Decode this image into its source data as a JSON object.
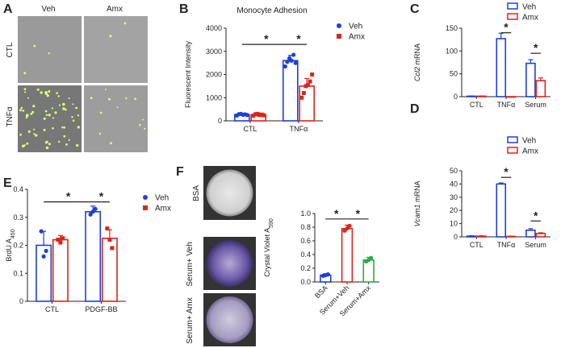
{
  "panels": {
    "A": {
      "label": "A",
      "col_labels": [
        "Veh",
        "Amx"
      ],
      "row_labels": [
        "CTL",
        "TNFα"
      ]
    },
    "F_images": {
      "label": "F",
      "row_labels": [
        "BSA",
        "Serum+ Veh",
        "Serum+ Amx"
      ]
    }
  },
  "colors": {
    "veh": "#1f3fd6",
    "amx": "#d9261c",
    "amx3": "#2fa84a"
  },
  "chart_data": [
    {
      "id": "B",
      "label": "B",
      "type": "bar",
      "title": "Monocyte Adhesion",
      "ylabel": "Fluorescent Intensity",
      "xlabel": "",
      "categories": [
        "CTL",
        "TNFα"
      ],
      "ylim": [
        0,
        4000
      ],
      "yticks": [
        0,
        1000,
        2000,
        3000,
        4000
      ],
      "legend": "top-right",
      "bar_style": "filled",
      "series": [
        {
          "name": "Veh",
          "values": [
            270,
            2600
          ],
          "err": [
            60,
            230
          ],
          "points": [
            [
              230,
              290,
              300,
              260,
              280,
              250
            ],
            [
              2350,
              2550,
              2700,
              2600,
              2850,
              2500
            ]
          ]
        },
        {
          "name": "Amx",
          "values": [
            260,
            1500
          ],
          "err": [
            60,
            330
          ],
          "points": [
            [
              220,
              280,
              300,
              250,
              270,
              240
            ],
            [
              1000,
              1200,
              1500,
              1550,
              1700,
              2000
            ]
          ]
        }
      ],
      "annotations": [
        {
          "text": "*",
          "from": [
            0,
            0
          ],
          "to": [
            1,
            0
          ],
          "y": 3300
        },
        {
          "text": "*",
          "from": [
            1,
            0
          ],
          "to": [
            1,
            1
          ],
          "y": 3300
        }
      ]
    },
    {
      "id": "C",
      "label": "C",
      "type": "bar",
      "ylabel_italic": "Ccl2",
      "ylabel_rest": " mRNA",
      "xlabel": "",
      "categories": [
        "CTL",
        "TNFα",
        "Serum"
      ],
      "ylim": [
        0,
        150
      ],
      "yticks": [
        0,
        50,
        100,
        150
      ],
      "legend": "top-right",
      "bar_style": "open",
      "series": [
        {
          "name": "Veh",
          "values": [
            1,
            127,
            73
          ],
          "err": [
            0.5,
            12,
            8
          ]
        },
        {
          "name": "Amx",
          "values": [
            1,
            0,
            35
          ],
          "err": [
            0.5,
            0,
            6
          ]
        }
      ],
      "annotations": [
        {
          "text": "*",
          "from": [
            1,
            0
          ],
          "to": [
            1,
            1
          ],
          "y": 140
        },
        {
          "text": "*",
          "from": [
            2,
            0
          ],
          "to": [
            2,
            1
          ],
          "y": 95
        }
      ]
    },
    {
      "id": "D",
      "label": "D",
      "type": "bar",
      "ylabel_italic": "Vcam1",
      "ylabel_rest": " mRNA",
      "xlabel": "",
      "categories": [
        "CTL",
        "TNFα",
        "Serum"
      ],
      "ylim": [
        0,
        50
      ],
      "yticks": [
        0,
        10,
        20,
        30,
        40,
        50
      ],
      "legend": "top-right",
      "bar_style": "open",
      "series": [
        {
          "name": "Veh",
          "values": [
            0.5,
            40,
            5
          ],
          "err": [
            0.3,
            0.8,
            1.2
          ]
        },
        {
          "name": "Amx",
          "values": [
            0.5,
            0.3,
            2.5
          ],
          "err": [
            0.3,
            0.2,
            0.6
          ]
        }
      ],
      "annotations": [
        {
          "text": "*",
          "from": [
            1,
            0
          ],
          "to": [
            1,
            1
          ],
          "y": 45
        },
        {
          "text": "*",
          "from": [
            2,
            0
          ],
          "to": [
            2,
            1
          ],
          "y": 12
        }
      ]
    },
    {
      "id": "E",
      "label": "E",
      "type": "bar",
      "ylabel": "BrdU A",
      "ylabel_sub": "450",
      "xlabel": "",
      "categories": [
        "CTL",
        "PDGF-BB"
      ],
      "ylim": [
        0,
        0.4
      ],
      "yticks": [
        0,
        0.1,
        0.2,
        0.3,
        0.4
      ],
      "ytick_labels": [
        "0",
        "0.1",
        "0.2",
        "0.3",
        "0.4"
      ],
      "legend": "top-right",
      "bar_style": "open",
      "series": [
        {
          "name": "Veh",
          "values": [
            0.2,
            0.32
          ],
          "err": [
            0.05,
            0.02
          ],
          "points": [
            [
              0.25,
              0.16,
              0.18
            ],
            [
              0.31,
              0.32,
              0.33
            ]
          ]
        },
        {
          "name": "Amx",
          "values": [
            0.22,
            0.225
          ],
          "err": [
            0.015,
            0.03
          ],
          "points": [
            [
              0.22,
              0.21,
              0.225
            ],
            [
              0.26,
              0.22,
              0.19
            ]
          ]
        }
      ],
      "annotations": [
        {
          "text": "*",
          "from": [
            0,
            0
          ],
          "to": [
            1,
            0
          ],
          "y": 0.355
        },
        {
          "text": "*",
          "from": [
            1,
            0
          ],
          "to": [
            1,
            1
          ],
          "y": 0.355
        }
      ]
    },
    {
      "id": "F",
      "label": "",
      "type": "bar",
      "ylabel": "Crystal Violet A",
      "ylabel_sub": "590",
      "xlabel": "",
      "categories": [
        "BSA",
        "Serum+Veh",
        "Serum+Amx"
      ],
      "ylim": [
        0,
        1.0
      ],
      "yticks": [
        0,
        0.2,
        0.4,
        0.6,
        0.8,
        1.0
      ],
      "ytick_labels": [
        "0.0",
        "0.2",
        "0.4",
        "0.6",
        "0.8",
        "1.0"
      ],
      "legend": "none",
      "bar_style": "open",
      "single_series_colored": true,
      "series": [
        {
          "name": "",
          "values": [
            0.1,
            0.78,
            0.32
          ],
          "err": [
            0.02,
            0.05,
            0.04
          ],
          "points": [
            [
              0.09,
              0.1,
              0.11
            ],
            [
              0.75,
              0.78,
              0.82
            ],
            [
              0.3,
              0.32,
              0.35
            ]
          ]
        }
      ],
      "annotations": [
        {
          "text": "*",
          "from": [
            0,
            0
          ],
          "to": [
            1,
            0
          ],
          "y": 0.92
        },
        {
          "text": "*",
          "from": [
            1,
            0
          ],
          "to": [
            2,
            0
          ],
          "y": 0.92
        }
      ]
    }
  ]
}
